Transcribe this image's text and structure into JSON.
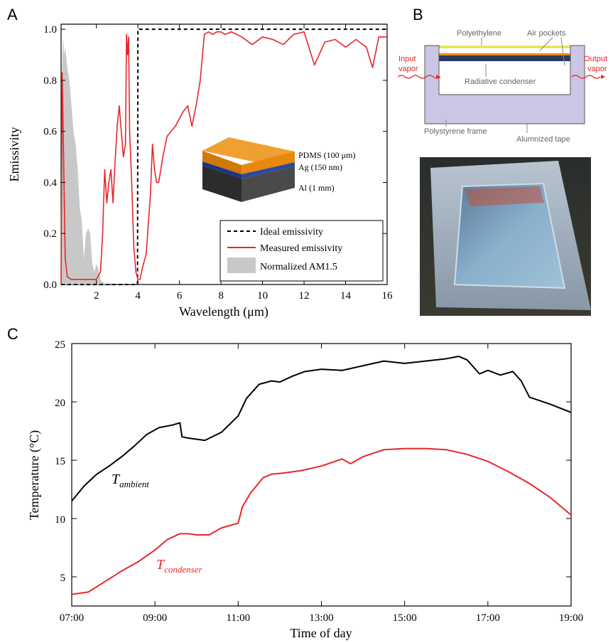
{
  "panels": {
    "a_letter": "A",
    "b_letter": "B",
    "c_letter": "C"
  },
  "chart_data": [
    {
      "type": "line",
      "panel": "A",
      "xlabel": "Wavelength (μm)",
      "ylabel": "Emissivity",
      "xlim": [
        0.3,
        16
      ],
      "ylim": [
        0,
        1.02
      ],
      "x_ticks": [
        2,
        4,
        6,
        8,
        10,
        12,
        14,
        16
      ],
      "y_ticks": [
        0.0,
        0.2,
        0.4,
        0.6,
        0.8,
        1.0
      ],
      "x_tick_labels": [
        "2",
        "4",
        "6",
        "8",
        "10",
        "12",
        "14",
        "16"
      ],
      "y_tick_labels": [
        "0.0",
        "0.2",
        "0.4",
        "0.6",
        "0.8",
        "1.0"
      ],
      "legend_placement": "bottom-right",
      "colors": {
        "ideal": "#000000",
        "measured": "#e8262a",
        "am15": "#c8c8c8"
      },
      "series": [
        {
          "name": "Ideal emissivity",
          "style": "dashed",
          "x": [
            0.3,
            3.98,
            4.0,
            16
          ],
          "y": [
            0.0,
            0.0,
            1.0,
            1.0
          ]
        },
        {
          "name": "Measured emissivity",
          "style": "solid",
          "x": [
            0.3,
            0.35,
            0.4,
            0.45,
            0.5,
            0.6,
            0.8,
            1.0,
            1.2,
            1.4,
            1.6,
            1.8,
            2.0,
            2.2,
            2.3,
            2.4,
            2.5,
            2.6,
            2.7,
            2.8,
            2.9,
            3.0,
            3.1,
            3.2,
            3.3,
            3.4,
            3.45,
            3.5,
            3.55,
            3.6,
            3.7,
            3.8,
            3.9,
            4.0,
            4.1,
            4.2,
            4.4,
            4.6,
            4.7,
            4.8,
            4.9,
            5.0,
            5.2,
            5.4,
            5.6,
            5.8,
            6.0,
            6.2,
            6.4,
            6.6,
            6.8,
            7.0,
            7.2,
            7.4,
            7.6,
            7.8,
            8.0,
            8.2,
            8.5,
            9.0,
            9.5,
            10.0,
            10.5,
            11.0,
            11.5,
            12.0,
            12.5,
            13.0,
            13.5,
            14.0,
            14.5,
            15.0,
            15.3,
            15.6,
            16.0
          ],
          "y": [
            0.0,
            0.83,
            0.6,
            0.35,
            0.1,
            0.03,
            0.02,
            0.02,
            0.02,
            0.02,
            0.02,
            0.02,
            0.02,
            0.05,
            0.2,
            0.45,
            0.32,
            0.4,
            0.45,
            0.32,
            0.48,
            0.62,
            0.7,
            0.6,
            0.5,
            0.55,
            0.98,
            0.9,
            0.97,
            0.6,
            0.4,
            0.15,
            0.05,
            0.02,
            0.02,
            0.06,
            0.12,
            0.35,
            0.55,
            0.45,
            0.4,
            0.4,
            0.5,
            0.58,
            0.6,
            0.62,
            0.65,
            0.68,
            0.7,
            0.62,
            0.7,
            0.8,
            0.98,
            0.99,
            0.98,
            0.99,
            0.99,
            0.98,
            0.99,
            0.97,
            0.94,
            0.97,
            0.96,
            0.94,
            0.98,
            0.99,
            0.86,
            0.95,
            0.96,
            0.93,
            0.96,
            0.93,
            0.85,
            0.97,
            0.97
          ]
        },
        {
          "name": "Normalized AM1.5",
          "style": "filled",
          "x": [
            0.3,
            0.35,
            0.4,
            0.45,
            0.5,
            0.6,
            0.7,
            0.8,
            0.9,
            1.0,
            1.1,
            1.2,
            1.3,
            1.4,
            1.5,
            1.6,
            1.7,
            1.8,
            1.9,
            2.0,
            2.1,
            2.2,
            2.3,
            2.5
          ],
          "y": [
            0.0,
            0.85,
            0.97,
            0.9,
            0.93,
            0.85,
            0.8,
            0.7,
            0.6,
            0.55,
            0.45,
            0.3,
            0.25,
            0.1,
            0.2,
            0.22,
            0.2,
            0.08,
            0.05,
            0.08,
            0.06,
            0.02,
            0.01,
            0.0
          ]
        }
      ],
      "inset": {
        "layers": [
          "PDMS (100 μm)",
          "Ag (150 nm)",
          "Al (1 mm)"
        ],
        "layer_colors": {
          "pdms": "#e8890c",
          "ag": "#2a4aa0",
          "al": "#3a3a3a"
        }
      }
    },
    {
      "type": "line",
      "panel": "C",
      "xlabel": "Time of day",
      "ylabel": "Temperature (°C)",
      "xlim": [
        7,
        19
      ],
      "ylim": [
        2.5,
        25
      ],
      "x_ticks": [
        7,
        9,
        11,
        13,
        15,
        17,
        19
      ],
      "x_tick_labels": [
        "07:00",
        "09:00",
        "11:00",
        "13:00",
        "15:00",
        "17:00",
        "19:00"
      ],
      "y_ticks": [
        5,
        10,
        15,
        20,
        25
      ],
      "y_tick_labels": [
        "5",
        "10",
        "15",
        "20",
        "25"
      ],
      "series": [
        {
          "name_main": "T",
          "name_sub": "ambient",
          "color": "#000000",
          "x": [
            7.0,
            7.3,
            7.6,
            7.9,
            8.2,
            8.5,
            8.8,
            9.1,
            9.4,
            9.6,
            9.65,
            9.8,
            10.2,
            10.6,
            11.0,
            11.2,
            11.5,
            11.8,
            12.0,
            12.3,
            12.6,
            13.0,
            13.5,
            14.0,
            14.5,
            15.0,
            15.5,
            16.0,
            16.3,
            16.5,
            16.8,
            17.0,
            17.3,
            17.6,
            17.8,
            18.0,
            18.5,
            19.0
          ],
          "y": [
            11.5,
            12.8,
            13.8,
            14.5,
            15.3,
            16.2,
            17.2,
            17.8,
            18.0,
            18.2,
            17.0,
            16.9,
            16.7,
            17.4,
            18.8,
            20.3,
            21.5,
            21.8,
            21.7,
            22.2,
            22.6,
            22.8,
            22.7,
            23.1,
            23.5,
            23.3,
            23.5,
            23.7,
            23.9,
            23.6,
            22.4,
            22.7,
            22.3,
            22.6,
            21.8,
            20.4,
            19.8,
            19.1
          ]
        },
        {
          "name_main": "T",
          "name_sub": "condenser",
          "color": "#e8262a",
          "x": [
            7.0,
            7.4,
            7.8,
            8.2,
            8.6,
            9.0,
            9.3,
            9.6,
            9.8,
            10.0,
            10.3,
            10.6,
            11.0,
            11.1,
            11.3,
            11.6,
            11.8,
            12.1,
            12.5,
            13.0,
            13.5,
            13.7,
            14.0,
            14.5,
            15.0,
            15.5,
            16.0,
            16.5,
            17.0,
            17.5,
            18.0,
            18.5,
            19.0
          ],
          "y": [
            3.5,
            3.7,
            4.6,
            5.5,
            6.3,
            7.3,
            8.2,
            8.7,
            8.7,
            8.6,
            8.6,
            9.2,
            9.6,
            11.0,
            12.2,
            13.5,
            13.8,
            13.9,
            14.1,
            14.5,
            15.1,
            14.7,
            15.3,
            15.9,
            16.0,
            16.0,
            15.9,
            15.5,
            14.9,
            14.0,
            13.0,
            11.8,
            10.3
          ]
        }
      ]
    }
  ],
  "panel_b": {
    "labels": {
      "polyethylene": "Polyethylene",
      "air_pockets": "Air pockets",
      "input_vapor_1": "Input",
      "input_vapor_2": "vapor",
      "output_vapor_1": "Output",
      "output_vapor_2": "vapor",
      "radiative_condenser": "Radiative condenser",
      "polystyrene_frame": "Polystyrene frame",
      "alumnized_tape": "Alumnized tape"
    },
    "colors": {
      "frame": "#cbc6e4",
      "film": "#e2e23c",
      "condenser_top": "#e8890c",
      "condenser": "#2a3a60",
      "vapor": "#e8262a"
    }
  }
}
